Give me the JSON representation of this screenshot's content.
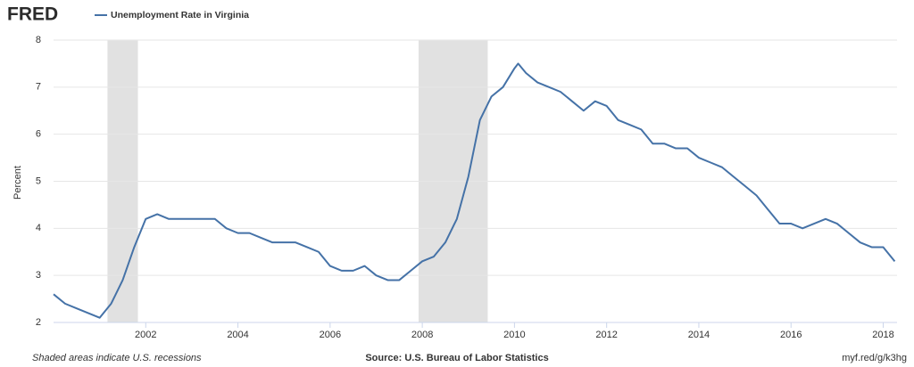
{
  "brand": "FRED",
  "chart_data": {
    "type": "line",
    "ylabel": "Percent",
    "series": [
      {
        "name": "Unemployment Rate in Virginia",
        "color": "#4572a7",
        "values": [
          2.6,
          2.4,
          2.3,
          2.2,
          2.1,
          2.4,
          2.9,
          3.6,
          4.2,
          4.3,
          4.2,
          4.2,
          4.2,
          4.2,
          4.2,
          4.0,
          3.9,
          3.9,
          3.8,
          3.7,
          3.7,
          3.7,
          3.6,
          3.5,
          3.2,
          3.1,
          3.1,
          3.2,
          3.0,
          2.9,
          2.9,
          3.1,
          3.3,
          3.4,
          3.7,
          4.2,
          5.1,
          6.3,
          6.8,
          7.0,
          7.4,
          7.5,
          7.3,
          7.1,
          7.0,
          6.9,
          6.7,
          6.5,
          6.7,
          6.6,
          6.3,
          6.2,
          6.1,
          5.8,
          5.8,
          5.7,
          5.7,
          5.5,
          5.4,
          5.3,
          5.1,
          4.9,
          4.7,
          4.4,
          4.1,
          4.1,
          4.0,
          4.1,
          4.2,
          4.1,
          3.9,
          3.7,
          3.6,
          3.6,
          3.3
        ]
      }
    ],
    "x": [
      2000,
      2000.25,
      2000.5,
      2000.75,
      2001,
      2001.25,
      2001.5,
      2001.75,
      2002,
      2002.25,
      2002.5,
      2002.75,
      2003,
      2003.25,
      2003.5,
      2003.75,
      2004,
      2004.25,
      2004.5,
      2004.75,
      2005,
      2005.25,
      2005.5,
      2005.75,
      2006,
      2006.25,
      2006.5,
      2006.75,
      2007,
      2007.25,
      2007.5,
      2007.75,
      2008,
      2008.25,
      2008.5,
      2008.75,
      2009,
      2009.25,
      2009.5,
      2009.75,
      2010,
      2010.08,
      2010.25,
      2010.5,
      2010.75,
      2011,
      2011.25,
      2011.5,
      2011.75,
      2012,
      2012.25,
      2012.5,
      2012.75,
      2013,
      2013.25,
      2013.5,
      2013.75,
      2014,
      2014.25,
      2014.5,
      2014.75,
      2015,
      2015.25,
      2015.5,
      2015.75,
      2016,
      2016.25,
      2016.5,
      2016.75,
      2017,
      2017.25,
      2017.5,
      2017.75,
      2018,
      2018.25
    ],
    "recessions": [
      [
        2001.17,
        2001.83
      ],
      [
        2007.92,
        2009.42
      ]
    ],
    "recession_color": "#e1e1e1",
    "xlim": [
      2000,
      2018.3
    ],
    "xticks": [
      2002,
      2004,
      2006,
      2008,
      2010,
      2012,
      2014,
      2016,
      2018
    ],
    "ylim": [
      2,
      8
    ],
    "yticks": [
      2,
      3,
      4,
      5,
      6,
      7,
      8
    ],
    "grid": true
  },
  "footer": {
    "note": "Shaded areas indicate U.S. recessions",
    "source": "Source: U.S. Bureau of Labor Statistics",
    "link": "myf.red/g/k3hg"
  }
}
